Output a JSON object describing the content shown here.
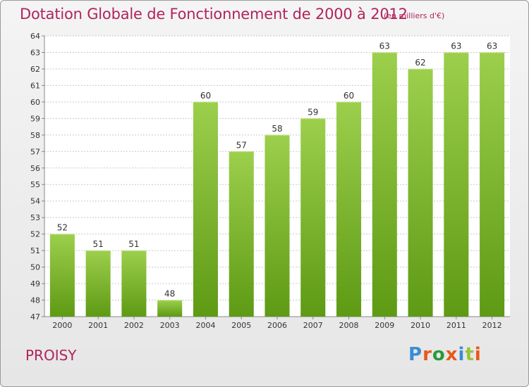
{
  "header": {
    "title": "Dotation Globale de Fonctionnement de 2000 à 2012",
    "subtitle": "(en milliers d'€)"
  },
  "footer": {
    "commune": "PROISY",
    "logo": "Proxiti",
    "logo_colors": [
      "#3b8bd6",
      "#e8591a",
      "#2a9a3a",
      "#e8591a",
      "#3b8bd6",
      "#9ac23a",
      "#e8591a"
    ]
  },
  "colors": {
    "bar_top": "#9ccf4c",
    "bar_bottom": "#5e9a14",
    "title": "#b0245c",
    "grid": "#c8c8c8"
  },
  "chart_data": {
    "type": "bar",
    "title": "Dotation Globale de Fonctionnement de 2000 à 2012",
    "subtitle": "(en milliers d'€)",
    "categories": [
      "2000",
      "2001",
      "2002",
      "2003",
      "2004",
      "2005",
      "2006",
      "2007",
      "2008",
      "2009",
      "2010",
      "2011",
      "2012"
    ],
    "values": [
      52,
      51,
      51,
      48,
      60,
      57,
      58,
      59,
      60,
      63,
      62,
      63,
      63
    ],
    "ylim": [
      47,
      64
    ],
    "yticks": [
      47,
      48,
      49,
      50,
      51,
      52,
      53,
      54,
      55,
      56,
      57,
      58,
      59,
      60,
      61,
      62,
      63,
      64
    ],
    "grid": true,
    "xlabel": "",
    "ylabel": ""
  }
}
